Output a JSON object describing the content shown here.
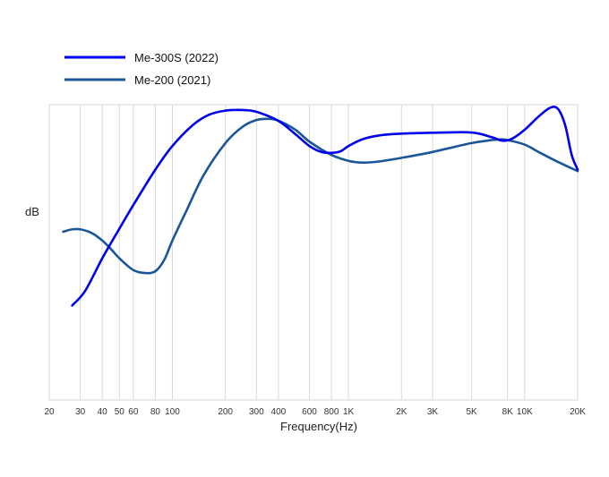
{
  "chart_data": {
    "type": "line",
    "xlabel": "Frequency(Hz)",
    "ylabel": "dB",
    "x_scale": "log",
    "xlim": [
      20,
      20000
    ],
    "ylim": [
      0,
      100
    ],
    "grid": "vertical",
    "legend_position": "top-left",
    "x_ticks": [
      {
        "value": 20,
        "label": "20"
      },
      {
        "value": 30,
        "label": "30"
      },
      {
        "value": 40,
        "label": "40"
      },
      {
        "value": 50,
        "label": "50"
      },
      {
        "value": 60,
        "label": "60"
      },
      {
        "value": 80,
        "label": "80"
      },
      {
        "value": 100,
        "label": "100"
      },
      {
        "value": 200,
        "label": "200"
      },
      {
        "value": 300,
        "label": "300"
      },
      {
        "value": 400,
        "label": "400"
      },
      {
        "value": 600,
        "label": "600"
      },
      {
        "value": 800,
        "label": "800"
      },
      {
        "value": 1000,
        "label": "1K"
      },
      {
        "value": 2000,
        "label": "2K"
      },
      {
        "value": 3000,
        "label": "3K"
      },
      {
        "value": 5000,
        "label": "5K"
      },
      {
        "value": 8000,
        "label": "8K"
      },
      {
        "value": 10000,
        "label": "10K"
      },
      {
        "value": 20000,
        "label": "20K"
      }
    ],
    "series": [
      {
        "name": "Me-300S (2022)",
        "color": "#0000ee",
        "points": [
          [
            27,
            32
          ],
          [
            32,
            37
          ],
          [
            40,
            48
          ],
          [
            50,
            58
          ],
          [
            60,
            66
          ],
          [
            80,
            78
          ],
          [
            100,
            86
          ],
          [
            130,
            93
          ],
          [
            160,
            96.5
          ],
          [
            200,
            98
          ],
          [
            250,
            98.2
          ],
          [
            300,
            97.6
          ],
          [
            400,
            94.5
          ],
          [
            500,
            90
          ],
          [
            600,
            86
          ],
          [
            700,
            84
          ],
          [
            800,
            83.7
          ],
          [
            900,
            84.2
          ],
          [
            1000,
            86
          ],
          [
            1200,
            88.3
          ],
          [
            1500,
            89.6
          ],
          [
            2000,
            90.2
          ],
          [
            3000,
            90.5
          ],
          [
            5000,
            90.6
          ],
          [
            6500,
            89
          ],
          [
            7500,
            87.8
          ],
          [
            8500,
            88.5
          ],
          [
            10000,
            91.5
          ],
          [
            12000,
            96
          ],
          [
            14000,
            99
          ],
          [
            15500,
            98.5
          ],
          [
            17000,
            93
          ],
          [
            18500,
            83
          ],
          [
            20000,
            78
          ]
        ]
      },
      {
        "name": "Me-200 (2021)",
        "color": "#1a5699",
        "points": [
          [
            24,
            57
          ],
          [
            27,
            57.8
          ],
          [
            30,
            57.8
          ],
          [
            35,
            56.5
          ],
          [
            40,
            54
          ],
          [
            45,
            51
          ],
          [
            50,
            48
          ],
          [
            60,
            44
          ],
          [
            70,
            43
          ],
          [
            80,
            43.6
          ],
          [
            90,
            47.5
          ],
          [
            100,
            54
          ],
          [
            120,
            64
          ],
          [
            150,
            76
          ],
          [
            200,
            87
          ],
          [
            250,
            92.5
          ],
          [
            300,
            94.8
          ],
          [
            350,
            95.2
          ],
          [
            400,
            94.6
          ],
          [
            500,
            91.5
          ],
          [
            600,
            87.5
          ],
          [
            800,
            83
          ],
          [
            1000,
            81
          ],
          [
            1200,
            80.4
          ],
          [
            1500,
            80.8
          ],
          [
            2000,
            82
          ],
          [
            3000,
            84
          ],
          [
            5000,
            87
          ],
          [
            7000,
            88.2
          ],
          [
            8000,
            88
          ],
          [
            10000,
            86.5
          ],
          [
            12000,
            84
          ],
          [
            15000,
            81
          ],
          [
            20000,
            77.5
          ]
        ]
      }
    ]
  }
}
